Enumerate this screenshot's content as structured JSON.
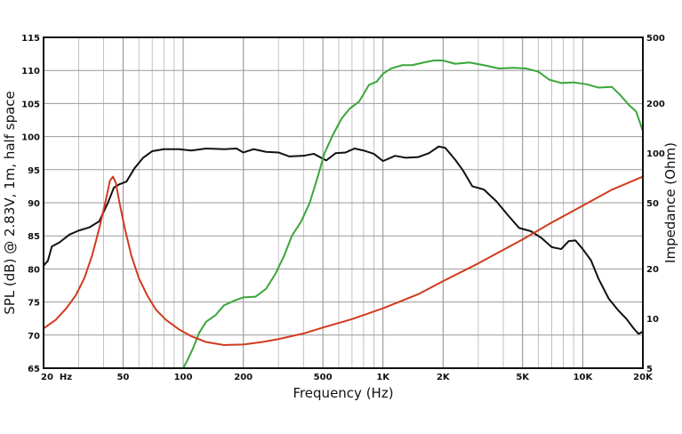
{
  "chart_data": {
    "type": "line",
    "title": "",
    "xlabel": "Frequency (Hz)",
    "ylabel": "SPL (dB) @ 2.83V, 1m, half space",
    "y2label": "Impedance (Ohm)",
    "x_scale": "log",
    "xlim": [
      20,
      20000
    ],
    "ylim": [
      65,
      115
    ],
    "y2lim": [
      5,
      500
    ],
    "y2_scale": "log",
    "grid": true,
    "legend": "none",
    "x_ticks": [
      {
        "value": 20,
        "label": "20  Hz"
      },
      {
        "value": 50,
        "label": "50"
      },
      {
        "value": 100,
        "label": "100"
      },
      {
        "value": 200,
        "label": "200"
      },
      {
        "value": 500,
        "label": "500"
      },
      {
        "value": 1000,
        "label": "1K"
      },
      {
        "value": 2000,
        "label": "2K"
      },
      {
        "value": 5000,
        "label": "5K"
      },
      {
        "value": 10000,
        "label": "10K"
      },
      {
        "value": 20000,
        "label": "20K"
      }
    ],
    "y_ticks": [
      {
        "value": 65,
        "label": "65"
      },
      {
        "value": 70,
        "label": "70"
      },
      {
        "value": 75,
        "label": "75"
      },
      {
        "value": 80,
        "label": "80"
      },
      {
        "value": 85,
        "label": "85"
      },
      {
        "value": 90,
        "label": "90"
      },
      {
        "value": 95,
        "label": "95"
      },
      {
        "value": 100,
        "label": "100"
      },
      {
        "value": 105,
        "label": "105"
      },
      {
        "value": 110,
        "label": "110"
      },
      {
        "value": 115,
        "label": "115"
      }
    ],
    "y2_ticks": [
      {
        "value": 5,
        "label": "5"
      },
      {
        "value": 10,
        "label": "10"
      },
      {
        "value": 20,
        "label": "20"
      },
      {
        "value": 50,
        "label": "50"
      },
      {
        "value": 100,
        "label": "100"
      },
      {
        "value": 200,
        "label": "200"
      },
      {
        "value": 500,
        "label": "500"
      }
    ],
    "series": [
      {
        "color": "#111111",
        "axis": "left",
        "points": [
          [
            20,
            80.5
          ],
          [
            21,
            81.2
          ],
          [
            22,
            83.4
          ],
          [
            24,
            84
          ],
          [
            27,
            85.2
          ],
          [
            30,
            85.8
          ],
          [
            34,
            86.3
          ],
          [
            38,
            87.2
          ],
          [
            42,
            90
          ],
          [
            45,
            92.3
          ],
          [
            48,
            92.8
          ],
          [
            52,
            93.2
          ],
          [
            57,
            95.2
          ],
          [
            63,
            96.8
          ],
          [
            70,
            97.8
          ],
          [
            80,
            98.1
          ],
          [
            95,
            98.1
          ],
          [
            110,
            97.9
          ],
          [
            130,
            98.2
          ],
          [
            160,
            98.1
          ],
          [
            185,
            98.2
          ],
          [
            200,
            97.6
          ],
          [
            225,
            98.1
          ],
          [
            260,
            97.7
          ],
          [
            300,
            97.6
          ],
          [
            340,
            97
          ],
          [
            400,
            97.1
          ],
          [
            450,
            97.4
          ],
          [
            520,
            96.4
          ],
          [
            580,
            97.5
          ],
          [
            650,
            97.6
          ],
          [
            720,
            98.2
          ],
          [
            800,
            97.9
          ],
          [
            900,
            97.4
          ],
          [
            1000,
            96.3
          ],
          [
            1150,
            97.1
          ],
          [
            1300,
            96.8
          ],
          [
            1500,
            96.9
          ],
          [
            1700,
            97.5
          ],
          [
            1900,
            98.5
          ],
          [
            2050,
            98.3
          ],
          [
            2300,
            96.5
          ],
          [
            2500,
            95
          ],
          [
            2800,
            92.5
          ],
          [
            3200,
            92
          ],
          [
            3700,
            90.2
          ],
          [
            4200,
            88.2
          ],
          [
            4800,
            86.2
          ],
          [
            5500,
            85.7
          ],
          [
            6200,
            84.7
          ],
          [
            7000,
            83.3
          ],
          [
            7800,
            83
          ],
          [
            8500,
            84.2
          ],
          [
            9200,
            84.3
          ],
          [
            10000,
            83
          ],
          [
            11000,
            81.3
          ],
          [
            12000,
            78.5
          ],
          [
            13500,
            75.5
          ],
          [
            15000,
            73.8
          ],
          [
            16500,
            72.5
          ],
          [
            18000,
            71
          ],
          [
            19000,
            70.2
          ],
          [
            20000,
            70.5
          ]
        ]
      },
      {
        "color": "#3aa63a",
        "axis": "left",
        "points": [
          [
            100,
            65
          ],
          [
            105,
            66.2
          ],
          [
            112,
            68
          ],
          [
            120,
            70.3
          ],
          [
            130,
            72
          ],
          [
            145,
            73
          ],
          [
            160,
            74.5
          ],
          [
            180,
            75.2
          ],
          [
            200,
            75.7
          ],
          [
            230,
            75.8
          ],
          [
            260,
            77
          ],
          [
            290,
            79.3
          ],
          [
            320,
            82
          ],
          [
            350,
            85
          ],
          [
            390,
            87.2
          ],
          [
            430,
            90
          ],
          [
            470,
            93.8
          ],
          [
            510,
            97.5
          ],
          [
            560,
            100.2
          ],
          [
            620,
            102.7
          ],
          [
            680,
            104.2
          ],
          [
            760,
            105.3
          ],
          [
            850,
            107.8
          ],
          [
            930,
            108.3
          ],
          [
            1000,
            109.5
          ],
          [
            1100,
            110.3
          ],
          [
            1250,
            110.8
          ],
          [
            1400,
            110.8
          ],
          [
            1600,
            111.2
          ],
          [
            1800,
            111.5
          ],
          [
            2000,
            111.5
          ],
          [
            2300,
            111
          ],
          [
            2700,
            111.2
          ],
          [
            3200,
            110.8
          ],
          [
            3800,
            110.3
          ],
          [
            4500,
            110.4
          ],
          [
            5200,
            110.3
          ],
          [
            6000,
            109.8
          ],
          [
            6800,
            108.6
          ],
          [
            7800,
            108.1
          ],
          [
            9000,
            108.2
          ],
          [
            10500,
            107.9
          ],
          [
            12000,
            107.4
          ],
          [
            14000,
            107.5
          ],
          [
            15500,
            106.2
          ],
          [
            17000,
            104.8
          ],
          [
            18500,
            103.8
          ],
          [
            19500,
            101.8
          ],
          [
            20000,
            100.8
          ]
        ]
      },
      {
        "color": "#d13a1f",
        "axis": "right",
        "points": [
          [
            20,
            8.7
          ],
          [
            23,
            9.8
          ],
          [
            26,
            11.5
          ],
          [
            29,
            13.8
          ],
          [
            32,
            17.5
          ],
          [
            35,
            24
          ],
          [
            38,
            35
          ],
          [
            41,
            52
          ],
          [
            43,
            68
          ],
          [
            44.5,
            72
          ],
          [
            46,
            66
          ],
          [
            48,
            50
          ],
          [
            51,
            35
          ],
          [
            55,
            24
          ],
          [
            60,
            17.5
          ],
          [
            66,
            13.8
          ],
          [
            73,
            11.3
          ],
          [
            82,
            9.8
          ],
          [
            95,
            8.6
          ],
          [
            110,
            7.8
          ],
          [
            130,
            7.2
          ],
          [
            160,
            6.9
          ],
          [
            200,
            6.95
          ],
          [
            250,
            7.2
          ],
          [
            300,
            7.5
          ],
          [
            400,
            8.1
          ],
          [
            500,
            8.8
          ],
          [
            700,
            9.9
          ],
          [
            1000,
            11.5
          ],
          [
            1500,
            14
          ],
          [
            2000,
            16.8
          ],
          [
            3000,
            21.5
          ],
          [
            5000,
            30
          ],
          [
            7000,
            38
          ],
          [
            10000,
            48
          ],
          [
            14000,
            60
          ],
          [
            20000,
            72
          ]
        ]
      }
    ]
  }
}
